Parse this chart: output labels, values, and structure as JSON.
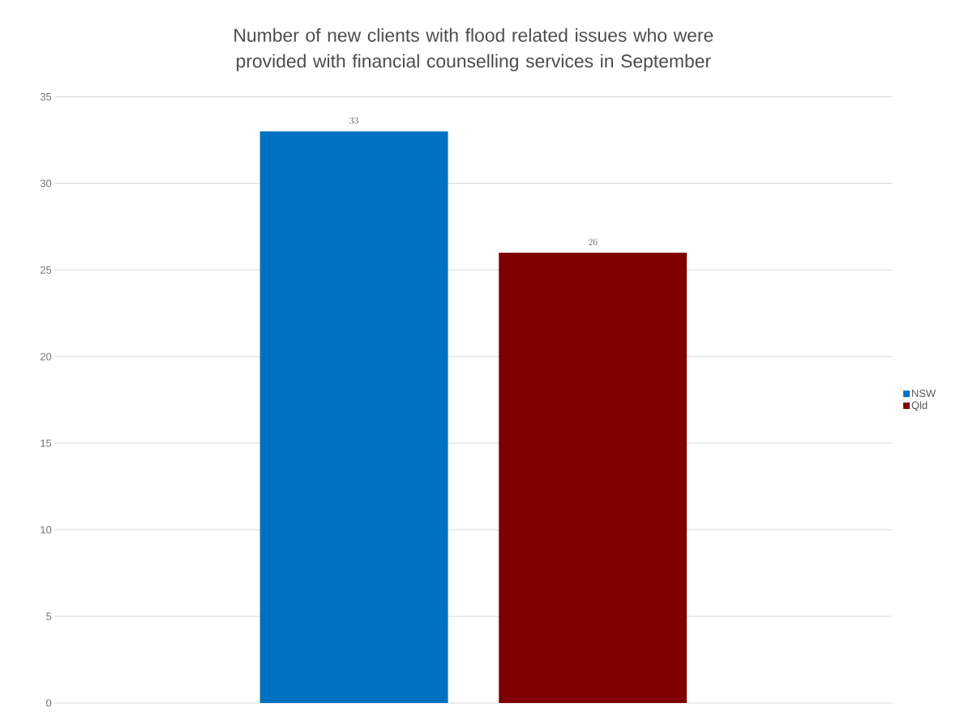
{
  "chart_data": {
    "type": "bar",
    "title": "Number of new clients with flood related issues who were provided with financial counselling services in September",
    "categories": [
      null
    ],
    "series": [
      {
        "name": "NSW",
        "color": "#0070c0",
        "values": [
          33
        ]
      },
      {
        "name": "Qld",
        "color": "#7f0000",
        "values": [
          26
        ]
      }
    ],
    "ylim": [
      0,
      35
    ],
    "yticks": [
      0,
      5,
      10,
      15,
      20,
      25,
      30,
      35
    ],
    "grid": "y",
    "legend": "right",
    "data_labels": true
  }
}
